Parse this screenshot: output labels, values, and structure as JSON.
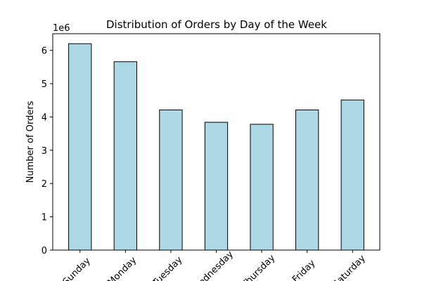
{
  "chart_data": {
    "type": "bar",
    "title": "Distribution of Orders by Day of the Week",
    "xlabel": "",
    "ylabel": "Number of Orders",
    "offset_text": "1e6",
    "categories": [
      "Sunday",
      "Monday",
      "Tuesday",
      "Wednesday",
      "Thursday",
      "Friday",
      "Saturday"
    ],
    "values": [
      6200000,
      5660000,
      4210000,
      3840000,
      3780000,
      4210000,
      4510000
    ],
    "ylim": [
      0,
      6500000
    ],
    "yticks": [
      0,
      1,
      2,
      3,
      4,
      5,
      6
    ],
    "bar_color": "#add8e6",
    "edge_color": "#000000",
    "grid": false,
    "legend": "none"
  }
}
